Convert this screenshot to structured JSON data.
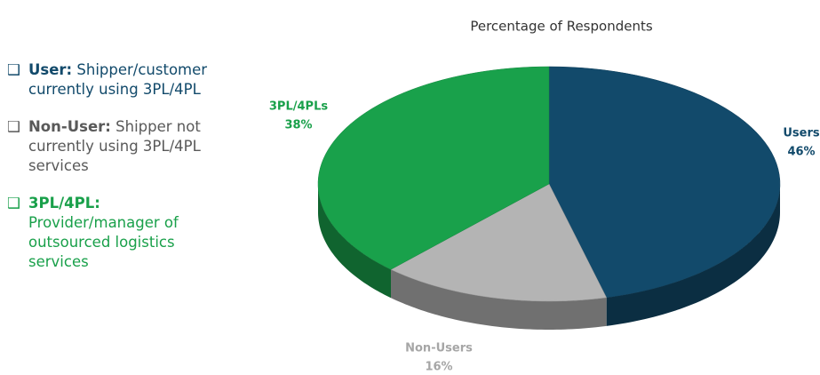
{
  "chart_data": {
    "type": "pie",
    "title": "Percentage of Respondents",
    "categories": [
      "Users",
      "Non-Users",
      "3PL/4PLs"
    ],
    "values": [
      46,
      16,
      38
    ],
    "value_labels": [
      "46%",
      "16%",
      "38%"
    ],
    "colors": [
      "#124a6b",
      "#b4b4b4",
      "#19a14b"
    ]
  },
  "definitions": [
    {
      "term": "User:",
      "text": "Shipper/customer currently using 3PL/4PL"
    },
    {
      "term": "Non-User:",
      "text": "Shipper not currently using 3PL/4PL services"
    },
    {
      "term": "3PL/4PL:",
      "text": "Provider/manager of outsourced logistics services"
    }
  ]
}
